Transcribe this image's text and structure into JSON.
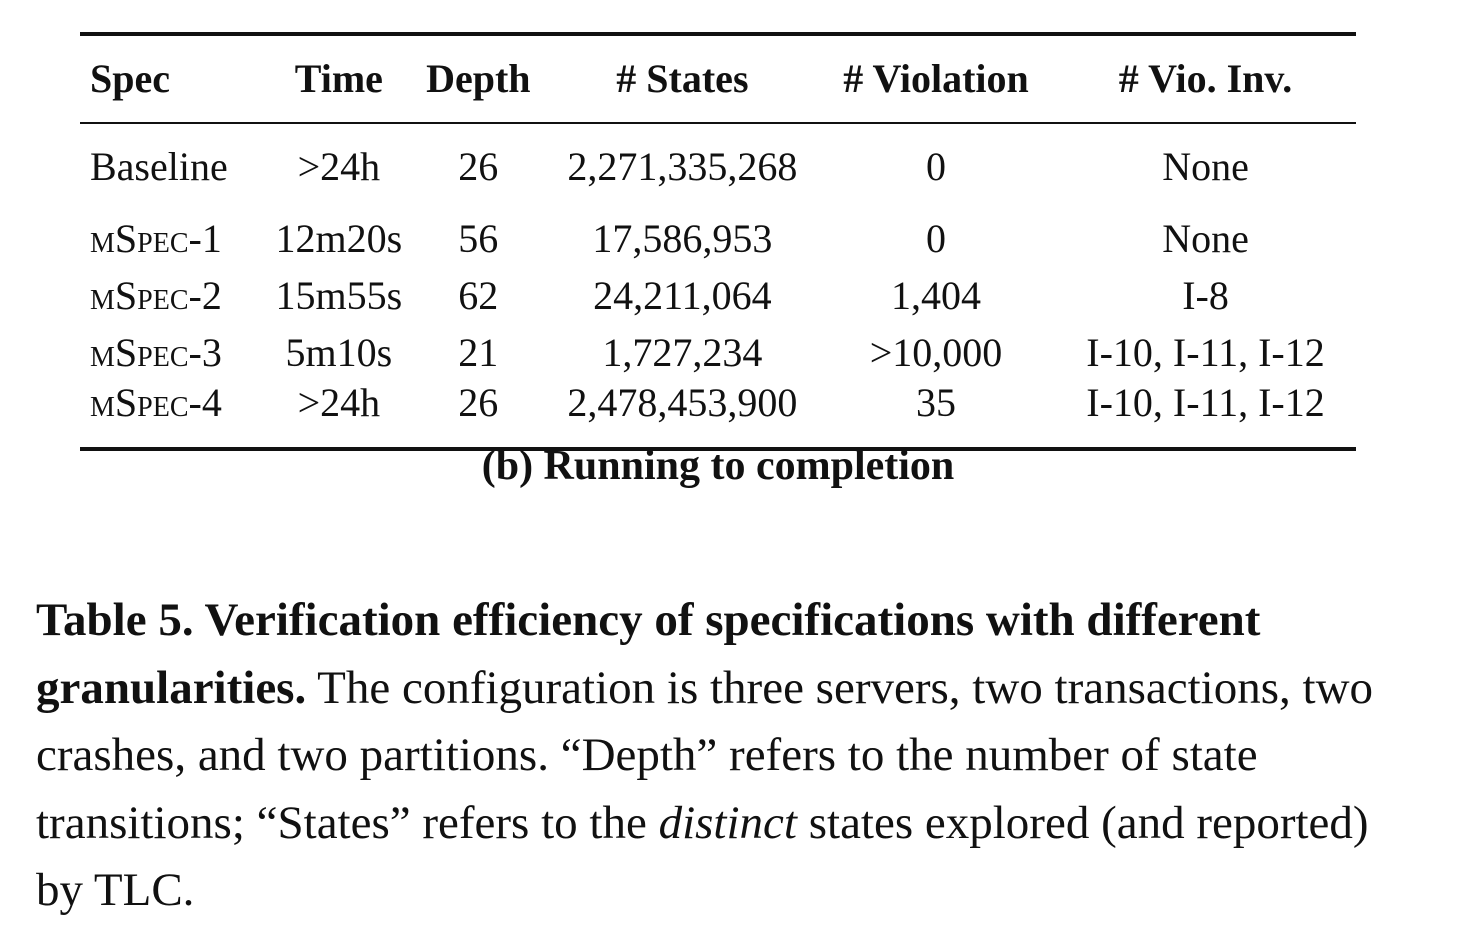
{
  "table": {
    "headers": {
      "spec": "Spec",
      "time": "Time",
      "depth": "Depth",
      "states": "# States",
      "violation": "# Violation",
      "vio_inv": "# Vio. Inv."
    },
    "rows": [
      {
        "spec": "Baseline",
        "time": ">24h",
        "depth": "26",
        "states": "2,271,335,268",
        "violation": "0",
        "vio_inv": "None"
      },
      {
        "spec": "mSpec-1",
        "time": "12m20s",
        "depth": "56",
        "states": "17,586,953",
        "violation": "0",
        "vio_inv": "None"
      },
      {
        "spec": "mSpec-2",
        "time": "15m55s",
        "depth": "62",
        "states": "24,211,064",
        "violation": "1,404",
        "vio_inv": "I-8"
      },
      {
        "spec": "mSpec-3",
        "time": "5m10s",
        "depth": "21",
        "states": "1,727,234",
        "violation": ">10,000",
        "vio_inv": "I-10, I-11, I-12"
      },
      {
        "spec": "mSpec-4",
        "time": ">24h",
        "depth": "26",
        "states": "2,478,453,900",
        "violation": "35",
        "vio_inv": "I-10, I-11, I-12"
      }
    ]
  },
  "subcaption": "(b) Running to completion",
  "caption": {
    "head": "Table 5. Verification efficiency of specifications with different granularities.",
    "body_1": " The configuration is three servers, two transactions, two crashes, and two partitions. “Depth” refers to the number of state transitions; “States” refers to the ",
    "italic": "distinct",
    "body_2": " states explored (and reported) by TLC."
  }
}
